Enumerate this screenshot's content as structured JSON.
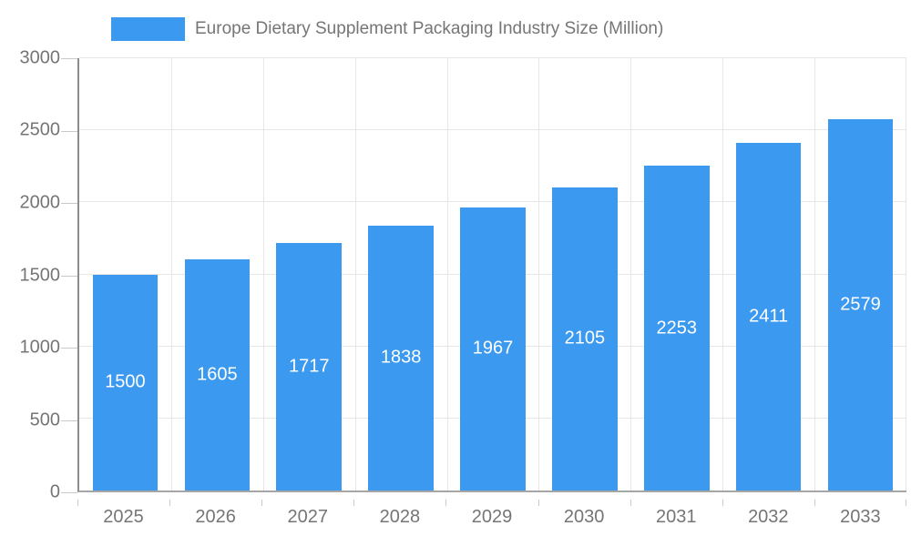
{
  "legend": {
    "label": "Europe Dietary Supplement Packaging Industry Size (Million)"
  },
  "chart_data": {
    "type": "bar",
    "title": "Europe Dietary Supplement Packaging Industry Size (Million)",
    "categories": [
      "2025",
      "2026",
      "2027",
      "2028",
      "2029",
      "2030",
      "2031",
      "2032",
      "2033"
    ],
    "values": [
      1500,
      1605,
      1717,
      1838,
      1967,
      2105,
      2253,
      2411,
      2579
    ],
    "xlabel": "",
    "ylabel": "",
    "ylim": [
      0,
      3000
    ],
    "y_ticks": [
      0,
      500,
      1000,
      1500,
      2000,
      2500,
      3000
    ],
    "grid": true,
    "legend_position": "top",
    "colors": {
      "bar": "#3b99ef",
      "value_label": "#ffffff",
      "text": "#757575",
      "grid": "#e6e6e6",
      "axis": "#8c8c8c",
      "tick": "#c9c9c9"
    }
  }
}
